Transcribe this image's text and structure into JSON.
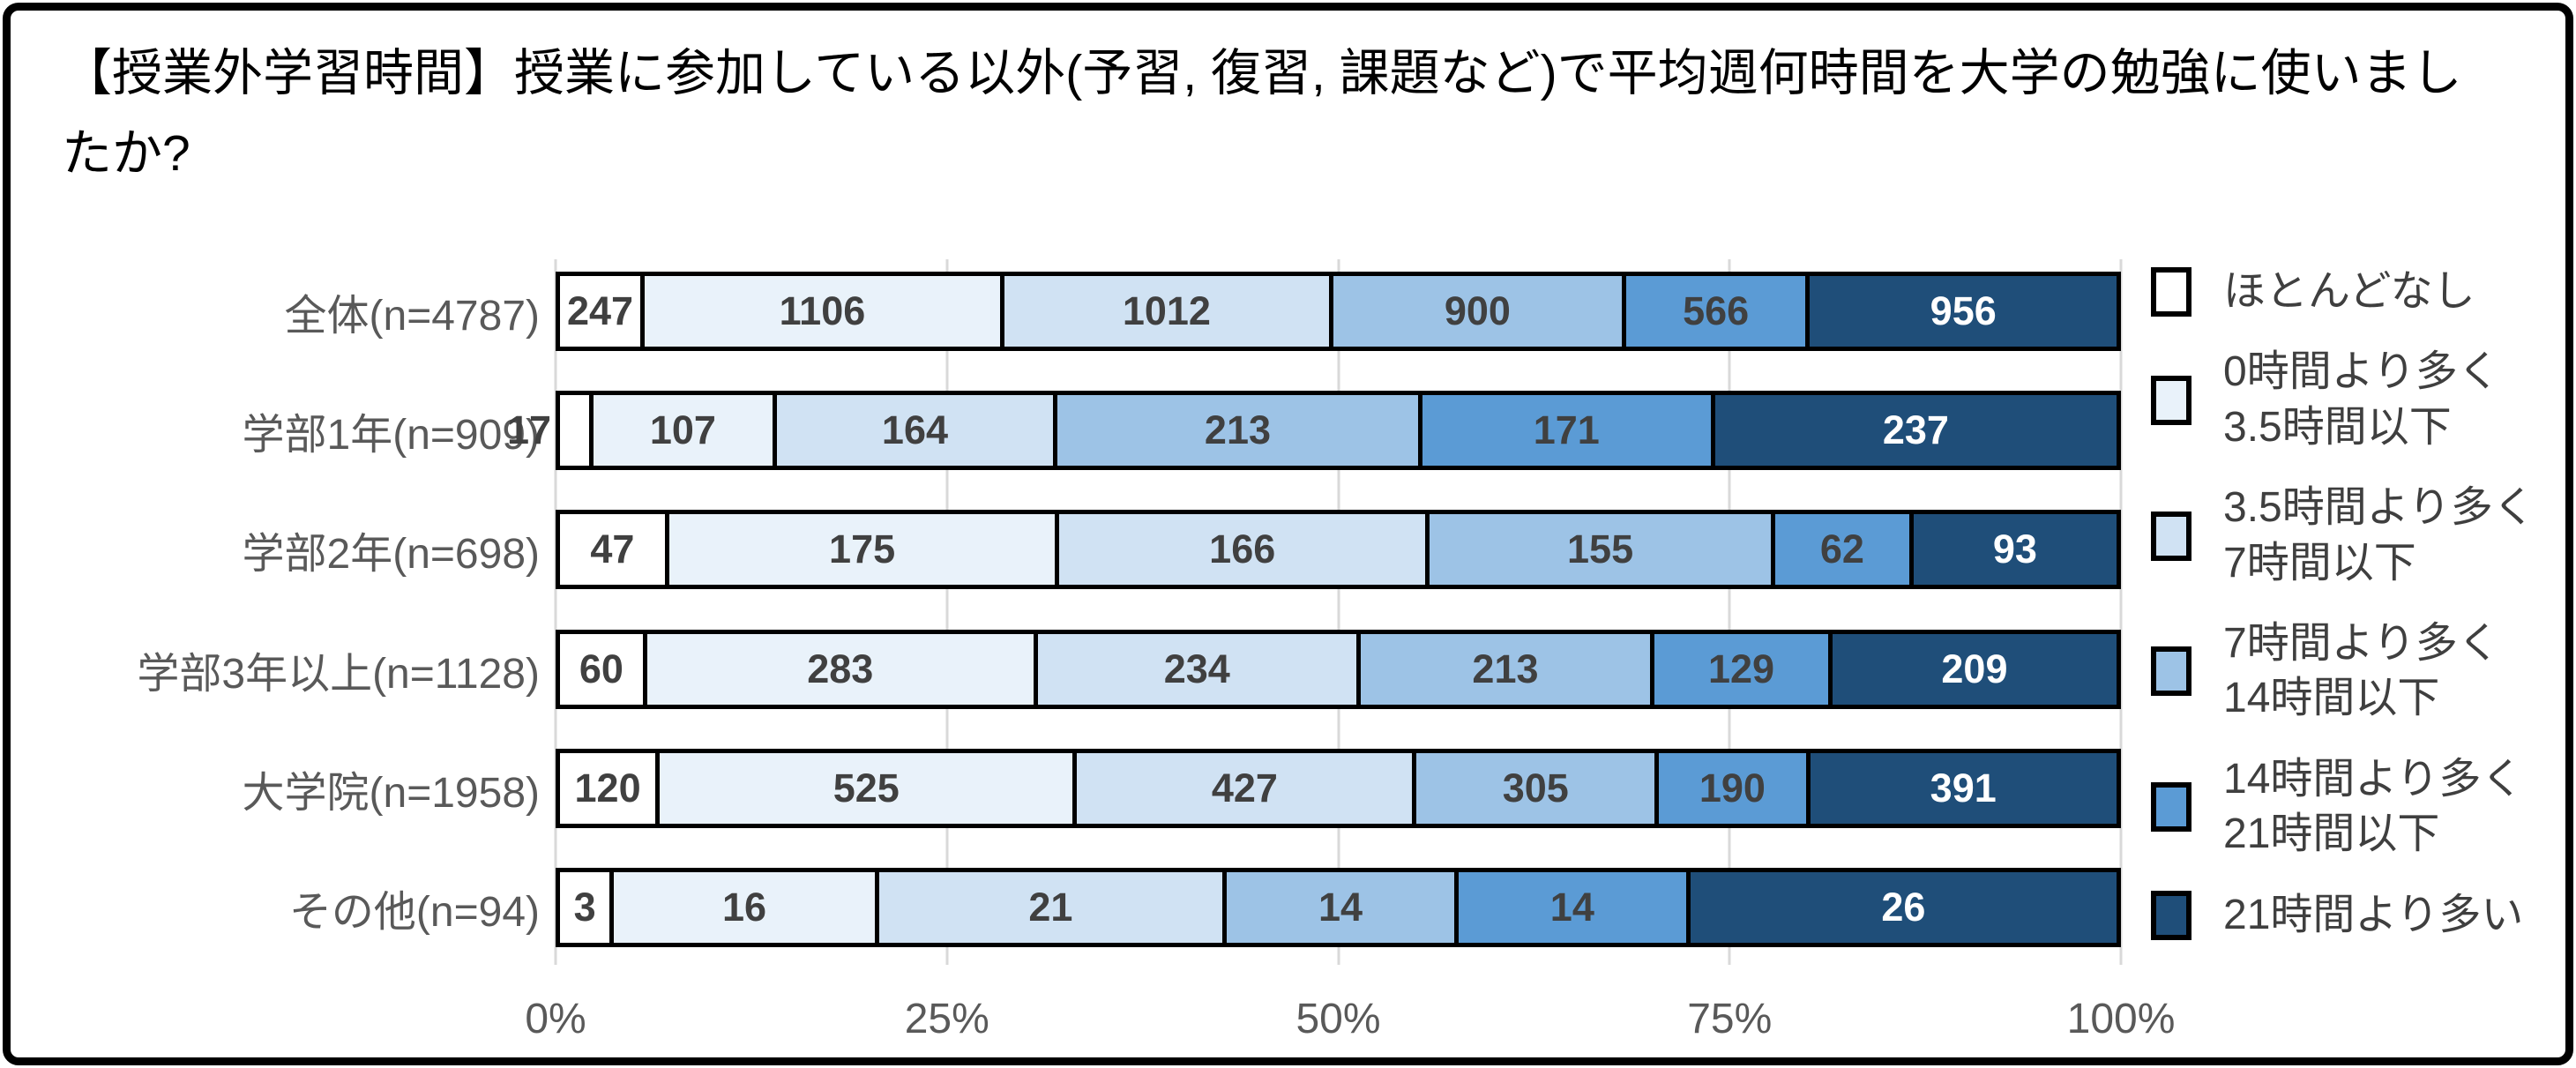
{
  "title": "【授業外学習時間】授業に参加している以外(予習, 復習, 課題など)で平均週何時間を大学の勉強に使いましたか?",
  "colors": {
    "frame_border": "#000000",
    "bar_border": "#000000",
    "gridline": "#d9d9d9",
    "axis_text": "#595959",
    "category_text": "#595959",
    "value_text": "#404040",
    "value_text_on_dark": "#ffffff",
    "title_text": "#000000",
    "legend_text": "#3f3f3f"
  },
  "chart_data": {
    "type": "bar",
    "orientation": "horizontal",
    "stacked": true,
    "note": "segment lengths are percent of row total; labels show raw counts",
    "title": "【授業外学習時間】授業に参加している以外(予習, 復習, 課題など)で平均週何時間を大学の勉強に使いましたか?",
    "categories": [
      "全体(n=4787)",
      "学部1年(n=909)",
      "学部2年(n=698)",
      "学部3年以上(n=1128)",
      "大学院(n=1958)",
      "その他(n=94)"
    ],
    "series": [
      {
        "name": "ほとんどなし",
        "color": "#ffffff",
        "label_color": "#404040",
        "values": [
          247,
          17,
          47,
          60,
          120,
          3
        ]
      },
      {
        "name": "0時間より多く3.5時間以下",
        "color": "#e9f2fa",
        "label_color": "#404040",
        "values": [
          1106,
          107,
          175,
          283,
          525,
          16
        ]
      },
      {
        "name": "3.5時間より多く7時間以下",
        "color": "#d0e2f3",
        "label_color": "#404040",
        "values": [
          1012,
          164,
          166,
          234,
          427,
          21
        ]
      },
      {
        "name": "7時間より多く14時間以下",
        "color": "#9dc3e6",
        "label_color": "#404040",
        "values": [
          900,
          213,
          155,
          213,
          305,
          14
        ]
      },
      {
        "name": "14時間より多く21時間以下",
        "color": "#5b9bd5",
        "label_color": "#404040",
        "values": [
          566,
          171,
          62,
          129,
          190,
          14
        ]
      },
      {
        "name": "21時間より多い",
        "color": "#1f4e79",
        "label_color": "#ffffff",
        "values": [
          956,
          237,
          93,
          209,
          391,
          26
        ]
      }
    ],
    "row_totals": [
      4787,
      909,
      698,
      1128,
      1958,
      94
    ],
    "x_ticks": [
      {
        "label": "0%",
        "pos": 0
      },
      {
        "label": "25%",
        "pos": 25
      },
      {
        "label": "50%",
        "pos": 50
      },
      {
        "label": "75%",
        "pos": 75
      },
      {
        "label": "100%",
        "pos": 100
      }
    ],
    "xlim": [
      0,
      100
    ],
    "grid": true,
    "legend_position": "right",
    "legend_items": [
      {
        "lines": [
          "ほとんどなし"
        ],
        "color": "#ffffff"
      },
      {
        "lines": [
          "0時間より多く",
          "3.5時間以下"
        ],
        "color": "#e9f2fa"
      },
      {
        "lines": [
          "3.5時間より多く",
          "7時間以下"
        ],
        "color": "#d0e2f3"
      },
      {
        "lines": [
          "7時間より多く",
          "14時間以下"
        ],
        "color": "#9dc3e6"
      },
      {
        "lines": [
          "14時間より多く",
          "21時間以下"
        ],
        "color": "#5b9bd5"
      },
      {
        "lines": [
          "21時間より多い"
        ],
        "color": "#1f4e79"
      }
    ]
  }
}
